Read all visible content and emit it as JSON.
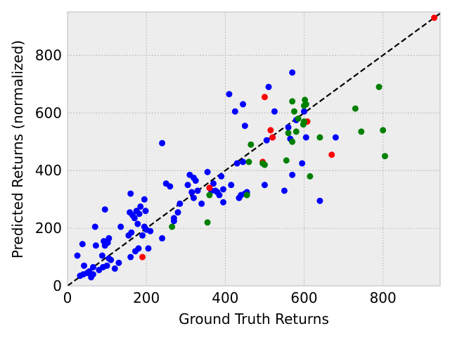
{
  "chart_data": {
    "type": "scatter",
    "xlabel": "Ground Truth Returns",
    "ylabel": "Predicted Returns (normalized)",
    "xlim": [
      0,
      945
    ],
    "ylim": [
      0,
      950
    ],
    "xticks": [
      0,
      200,
      400,
      600,
      800
    ],
    "yticks": [
      0,
      200,
      400,
      600,
      800
    ],
    "grid": true,
    "background": "#ededed",
    "reference_line": {
      "type": "identity",
      "style": "dashed",
      "color": "#000000"
    },
    "series": [
      {
        "color": "#0000ff",
        "points": [
          [
            25,
            105
          ],
          [
            32,
            35
          ],
          [
            38,
            145
          ],
          [
            40,
            40
          ],
          [
            42,
            70
          ],
          [
            50,
            45
          ],
          [
            55,
            50
          ],
          [
            60,
            30
          ],
          [
            65,
            40
          ],
          [
            65,
            65
          ],
          [
            70,
            205
          ],
          [
            72,
            140
          ],
          [
            80,
            55
          ],
          [
            88,
            105
          ],
          [
            90,
            65
          ],
          [
            92,
            155
          ],
          [
            95,
            265
          ],
          [
            95,
            140
          ],
          [
            100,
            70
          ],
          [
            102,
            150
          ],
          [
            105,
            95
          ],
          [
            105,
            165
          ],
          [
            110,
            90
          ],
          [
            120,
            60
          ],
          [
            130,
            80
          ],
          [
            135,
            205
          ],
          [
            155,
            175
          ],
          [
            158,
            255
          ],
          [
            160,
            320
          ],
          [
            160,
            100
          ],
          [
            162,
            185
          ],
          [
            165,
            245
          ],
          [
            170,
            235
          ],
          [
            172,
            120
          ],
          [
            175,
            260
          ],
          [
            178,
            215
          ],
          [
            180,
            130
          ],
          [
            182,
            250
          ],
          [
            185,
            275
          ],
          [
            190,
            175
          ],
          [
            195,
            300
          ],
          [
            195,
            205
          ],
          [
            198,
            260
          ],
          [
            200,
            195
          ],
          [
            205,
            130
          ],
          [
            210,
            190
          ],
          [
            240,
            495
          ],
          [
            240,
            165
          ],
          [
            250,
            355
          ],
          [
            260,
            345
          ],
          [
            270,
            235
          ],
          [
            270,
            225
          ],
          [
            280,
            255
          ],
          [
            285,
            285
          ],
          [
            305,
            350
          ],
          [
            310,
            385
          ],
          [
            315,
            325
          ],
          [
            320,
            305
          ],
          [
            320,
            375
          ],
          [
            325,
            365
          ],
          [
            330,
            330
          ],
          [
            340,
            285
          ],
          [
            355,
            395
          ],
          [
            365,
            330
          ],
          [
            370,
            355
          ],
          [
            375,
            330
          ],
          [
            380,
            325
          ],
          [
            385,
            315
          ],
          [
            390,
            380
          ],
          [
            395,
            335
          ],
          [
            395,
            290
          ],
          [
            410,
            665
          ],
          [
            415,
            350
          ],
          [
            425,
            605
          ],
          [
            430,
            425
          ],
          [
            435,
            305
          ],
          [
            440,
            315
          ],
          [
            445,
            630
          ],
          [
            445,
            430
          ],
          [
            450,
            555
          ],
          [
            450,
            320
          ],
          [
            455,
            325
          ],
          [
            500,
            350
          ],
          [
            505,
            505
          ],
          [
            510,
            690
          ],
          [
            520,
            515
          ],
          [
            525,
            605
          ],
          [
            550,
            330
          ],
          [
            560,
            550
          ],
          [
            565,
            510
          ],
          [
            570,
            385
          ],
          [
            570,
            740
          ],
          [
            580,
            575
          ],
          [
            595,
            425
          ],
          [
            600,
            605
          ],
          [
            605,
            515
          ],
          [
            640,
            295
          ],
          [
            680,
            515
          ]
        ]
      },
      {
        "color": "#ff0000",
        "points": [
          [
            190,
            100
          ],
          [
            360,
            340
          ],
          [
            495,
            430
          ],
          [
            500,
            655
          ],
          [
            515,
            540
          ],
          [
            520,
            515
          ],
          [
            608,
            570
          ],
          [
            670,
            455
          ],
          [
            930,
            930
          ]
        ]
      },
      {
        "color": "#008000",
        "points": [
          [
            265,
            205
          ],
          [
            355,
            220
          ],
          [
            360,
            315
          ],
          [
            455,
            315
          ],
          [
            460,
            430
          ],
          [
            465,
            490
          ],
          [
            495,
            425
          ],
          [
            500,
            420
          ],
          [
            555,
            435
          ],
          [
            560,
            530
          ],
          [
            570,
            640
          ],
          [
            570,
            500
          ],
          [
            575,
            605
          ],
          [
            580,
            535
          ],
          [
            585,
            580
          ],
          [
            598,
            560
          ],
          [
            600,
            570
          ],
          [
            600,
            625
          ],
          [
            602,
            645
          ],
          [
            605,
            630
          ],
          [
            615,
            380
          ],
          [
            640,
            515
          ],
          [
            730,
            615
          ],
          [
            745,
            535
          ],
          [
            790,
            690
          ],
          [
            800,
            540
          ],
          [
            805,
            450
          ]
        ]
      }
    ]
  }
}
